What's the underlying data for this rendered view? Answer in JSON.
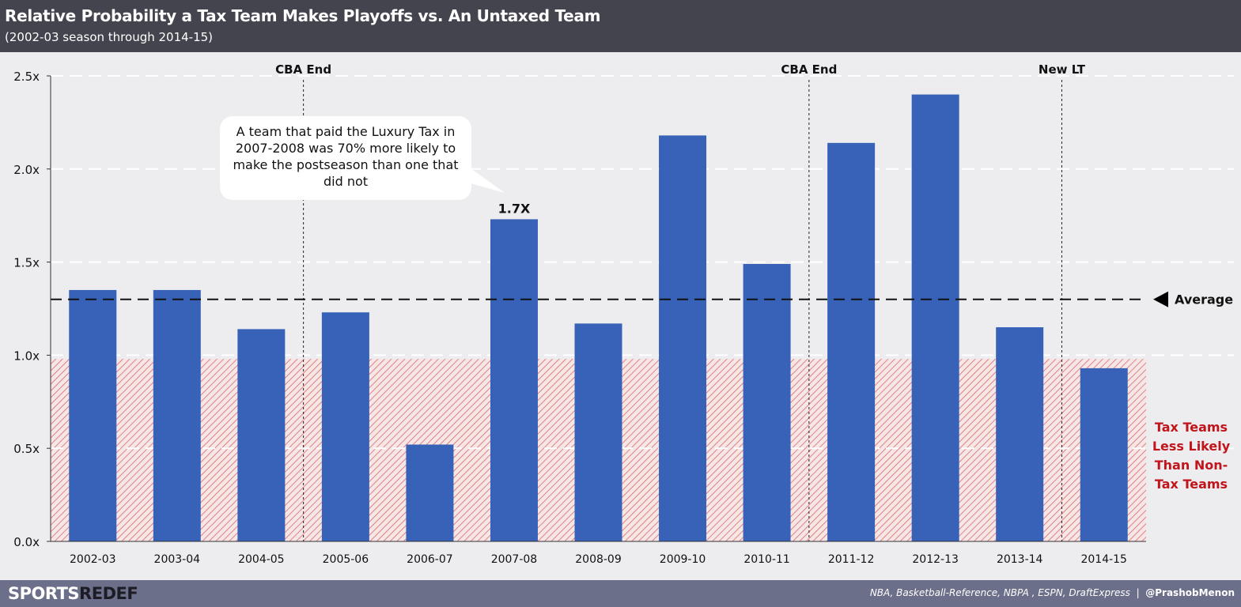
{
  "header": {
    "title": "Relative Probability a Tax Team Makes Playoffs vs. An Untaxed Team",
    "subtitle": "(2002-03  season through 2014-15)"
  },
  "footer": {
    "brand_a": "SPORTS",
    "brand_b": "REDEF",
    "sources": "NBA, Basketball-Reference, NBPA , ESPN, DraftExpress",
    "separator": "|",
    "handle": "@PrashobMenon"
  },
  "callout": {
    "text": "A team that paid the Luxury Tax in 2007-2008  was 70% more likely to make the postseason than one that did not"
  },
  "colors": {
    "bar": "#3762b8",
    "header": "#44444f",
    "footer": "#6c6f8a",
    "background": "#ededf0",
    "zone_red": "#c0151b"
  },
  "chart_data": {
    "type": "bar",
    "categories": [
      "2002-03",
      "2003-04",
      "2004-05",
      "2005-06",
      "2006-07",
      "2007-08",
      "2008-09",
      "2009-10",
      "2010-11",
      "2011-12",
      "2012-13",
      "2013-14",
      "2014-15"
    ],
    "values": [
      1.35,
      1.35,
      1.14,
      1.23,
      0.52,
      1.73,
      1.17,
      2.18,
      1.49,
      2.14,
      2.4,
      1.15,
      0.93
    ],
    "ylim": [
      0,
      2.5
    ],
    "yticks": [
      {
        "value": 0,
        "label": "0.0x"
      },
      {
        "value": 0.5,
        "label": "0.5x"
      },
      {
        "value": 1.0,
        "label": "1.0x"
      },
      {
        "value": 1.5,
        "label": "1.5x"
      },
      {
        "value": 2.0,
        "label": "2.0x"
      },
      {
        "value": 2.5,
        "label": "2.5x"
      }
    ],
    "grid": true,
    "data_labels": [
      {
        "category": "2007-08",
        "text": "1.7X"
      }
    ],
    "average": {
      "value": 1.3,
      "label": "Average"
    },
    "vertical_markers": [
      {
        "after_category": "2004-05",
        "label": "CBA End"
      },
      {
        "after_category": "2010-11",
        "label": "CBA End"
      },
      {
        "after_category": "2013-14",
        "label": "New LT"
      }
    ],
    "shaded_zone": {
      "from": 0,
      "to": 0.98,
      "label_lines": [
        "Tax Teams",
        "Less Likely",
        "Than Non-",
        "Tax Teams"
      ]
    }
  }
}
